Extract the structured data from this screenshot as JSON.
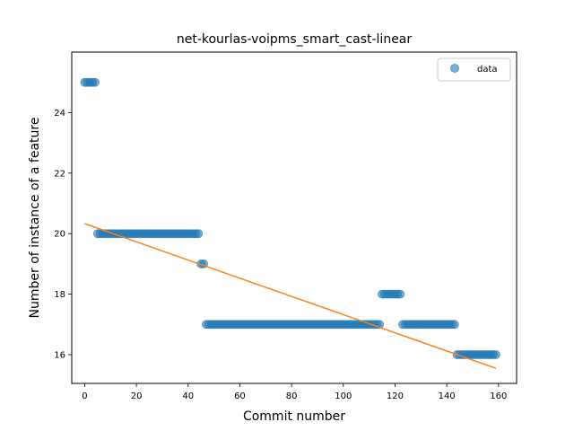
{
  "chart_data": {
    "type": "scatter",
    "title": "net-kourlas-voipms_smart_cast-linear",
    "xlabel": "Commit number",
    "ylabel": "Number of instance of a feature",
    "xlim": [
      -5,
      167
    ],
    "ylim": [
      15.05,
      26.0
    ],
    "xticks": [
      0,
      20,
      40,
      60,
      80,
      100,
      120,
      140,
      160
    ],
    "yticks": [
      16,
      18,
      20,
      22,
      24
    ],
    "legend": {
      "position": "top-right",
      "entries": [
        "data"
      ]
    },
    "grid": false,
    "colors": {
      "data": "#1f77b4",
      "fit": "#ff7f0e"
    },
    "series": [
      {
        "name": "data",
        "type": "scatter",
        "segments": [
          {
            "x_start": 0,
            "x_end": 4,
            "y": 25
          },
          {
            "x_start": 5,
            "x_end": 44,
            "y": 20
          },
          {
            "x_start": 45,
            "x_end": 46,
            "y": 19
          },
          {
            "x_start": 47,
            "x_end": 114,
            "y": 17
          },
          {
            "x_start": 115,
            "x_end": 122,
            "y": 18
          },
          {
            "x_start": 123,
            "x_end": 143,
            "y": 17
          },
          {
            "x_start": 144,
            "x_end": 159,
            "y": 16
          }
        ]
      },
      {
        "type": "line",
        "x": [
          0,
          159
        ],
        "y": [
          20.33,
          15.55
        ]
      }
    ]
  }
}
